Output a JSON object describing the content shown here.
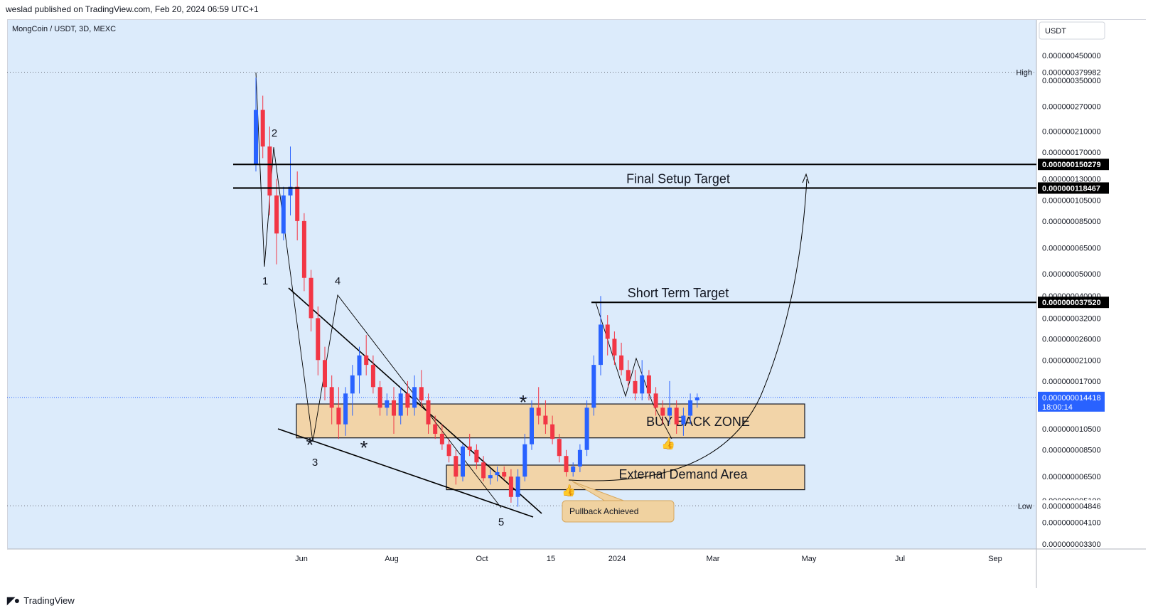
{
  "header": {
    "published": "weslad published on TradingView.com, Feb 20, 2024 06:59 UTC+1"
  },
  "symbol_info": "MongCoin / USDT, 3D, MEXC",
  "currency_button": "USDT",
  "footer": {
    "brand": "TradingView"
  },
  "colors": {
    "background": "#dcebfb",
    "up": "#2962ff",
    "down": "#f23645",
    "zone_fill": "#f2d4a8",
    "zone_stroke": "#131722",
    "callout_fill": "#f0d2a0",
    "callout_stroke": "#d6a75e",
    "last_price_bg": "#2962ff"
  },
  "chart_data": {
    "type": "candlestick",
    "scale": "log",
    "y_ticks": [
      "0.000000450000",
      "0.000000350000",
      "0.000000270000",
      "0.000000210000",
      "0.000000170000",
      "0.000000130000",
      "0.000000105000",
      "0.000000085000",
      "0.000000065000",
      "0.000000050000",
      "0.000000040000",
      "0.000000032000",
      "0.000000026000",
      "0.000000021000",
      "0.000000017000",
      "0.000000010500",
      "0.000000008500",
      "0.000000006500",
      "0.000000005100",
      "0.000000004100",
      "0.000000003300"
    ],
    "x_ticks": [
      "Jun",
      "Aug",
      "Oct",
      "15",
      "2024",
      "Mar",
      "May",
      "Jul",
      "Sep"
    ],
    "high": {
      "label": "High",
      "value": "0.000000379982"
    },
    "low": {
      "label": "Low",
      "value": "0.000000004846"
    },
    "levels": [
      {
        "value": "0.000000150279",
        "text": ""
      },
      {
        "value": "0.000000118467",
        "text": "Final Setup Target"
      },
      {
        "value": "0.000000037520",
        "text": "Short Term Target"
      }
    ],
    "last_price": {
      "value": "0.000000014418",
      "countdown": "18:00:14"
    },
    "zones": [
      {
        "name": "BUY BACK ZONE"
      },
      {
        "name": "External Demand Area"
      }
    ],
    "wave_labels": [
      "1",
      "2",
      "3",
      "4",
      "5"
    ],
    "markers": [
      "*",
      "*",
      "*"
    ],
    "callout": "Pullback Achieved",
    "candles": [
      [
        1.5e-07,
        3.6e-07,
        1.4e-07,
        2.6e-07
      ],
      [
        2.6e-07,
        3e-07,
        1.6e-07,
        1.8e-07
      ],
      [
        1.8e-07,
        2.2e-07,
        9e-08,
        1.1e-07
      ],
      [
        1.1e-07,
        1.3e-07,
        5.5e-08,
        7.5e-08
      ],
      [
        7.5e-08,
        1.2e-07,
        7e-08,
        1.1e-07
      ],
      [
        1.1e-07,
        1.8e-07,
        9e-08,
        1.2e-07
      ],
      [
        1.2e-07,
        1.4e-07,
        7e-08,
        8.5e-08
      ],
      [
        8.5e-08,
        9.2e-08,
        4.2e-08,
        4.8e-08
      ],
      [
        4.8e-08,
        5.2e-08,
        2.8e-08,
        3.2e-08
      ],
      [
        3.2e-08,
        3.6e-08,
        1.8e-08,
        2.1e-08
      ],
      [
        2.1e-08,
        2.4e-08,
        1.4e-08,
        1.6e-08
      ],
      [
        1.6e-08,
        1.8e-08,
        1.1e-08,
        1.3e-08
      ],
      [
        1.3e-08,
        1.6e-08,
        9.5e-09,
        1.1e-08
      ],
      [
        1.1e-08,
        1.6e-08,
        9.8e-09,
        1.5e-08
      ],
      [
        1.5e-08,
        2e-08,
        1.2e-08,
        1.8e-08
      ],
      [
        1.8e-08,
        2.4e-08,
        1.5e-08,
        2.2e-08
      ],
      [
        2.2e-08,
        2.7e-08,
        1.8e-08,
        2e-08
      ],
      [
        2e-08,
        2.2e-08,
        1.5e-08,
        1.6e-08
      ],
      [
        1.6e-08,
        1.7e-08,
        1.2e-08,
        1.3e-08
      ],
      [
        1.3e-08,
        1.5e-08,
        1.2e-08,
        1.4e-08
      ],
      [
        1.4e-08,
        1.6e-08,
        1e-08,
        1.2e-08
      ],
      [
        1.2e-08,
        1.6e-08,
        1.1e-08,
        1.5e-08
      ],
      [
        1.5e-08,
        1.7e-08,
        1.2e-08,
        1.3e-08
      ],
      [
        1.3e-08,
        1.8e-08,
        1.2e-08,
        1.6e-08
      ],
      [
        1.6e-08,
        1.9e-08,
        1.3e-08,
        1.4e-08
      ],
      [
        1.4e-08,
        1.5e-08,
        1e-08,
        1.1e-08
      ],
      [
        1.1e-08,
        1.2e-08,
        9.5e-09,
        1e-08
      ],
      [
        1e-08,
        1.1e-08,
        8.5e-09,
        9e-09
      ],
      [
        9e-09,
        9.5e-09,
        7.5e-09,
        8e-09
      ],
      [
        8e-09,
        8.5e-09,
        6e-09,
        6.5e-09
      ],
      [
        6.5e-09,
        9e-09,
        6.2e-09,
        8.8e-09
      ],
      [
        8.8e-09,
        1e-08,
        8e-09,
        8.5e-09
      ],
      [
        8.5e-09,
        9e-09,
        7e-09,
        7.5e-09
      ],
      [
        7.5e-09,
        8e-09,
        6.2e-09,
        6.4e-09
      ],
      [
        6.4e-09,
        7e-09,
        6e-09,
        6.6e-09
      ],
      [
        6.6e-09,
        7.2e-09,
        6.2e-09,
        6.8e-09
      ],
      [
        6.8e-09,
        7.2e-09,
        6.3e-09,
        6.5e-09
      ],
      [
        6.5e-09,
        7e-09,
        5e-09,
        5.3e-09
      ],
      [
        5.3e-09,
        7e-09,
        4.8e-09,
        6.5e-09
      ],
      [
        6.5e-09,
        1e-08,
        6.2e-09,
        9e-09
      ],
      [
        9e-09,
        1.4e-08,
        8.5e-09,
        1.3e-08
      ],
      [
        1.3e-08,
        1.6e-08,
        1.1e-08,
        1.2e-08
      ],
      [
        1.2e-08,
        1.4e-08,
        1e-08,
        1.1e-08
      ],
      [
        1.1e-08,
        1.2e-08,
        9e-09,
        9.5e-09
      ],
      [
        9.5e-09,
        1e-08,
        7.5e-09,
        8e-09
      ],
      [
        8e-09,
        8.5e-09,
        6.5e-09,
        6.8e-09
      ],
      [
        6.8e-09,
        7.5e-09,
        6.5e-09,
        7.2e-09
      ],
      [
        7.2e-09,
        9e-09,
        6.8e-09,
        8.5e-09
      ],
      [
        8.5e-09,
        1.4e-08,
        8e-09,
        1.3e-08
      ],
      [
        1.3e-08,
        2.2e-08,
        1.2e-08,
        2e-08
      ],
      [
        2e-08,
        4e-08,
        1.8e-08,
        3e-08
      ],
      [
        3e-08,
        3.3e-08,
        2.2e-08,
        2.6e-08
      ],
      [
        2.6e-08,
        2.8e-08,
        2e-08,
        2.2e-08
      ],
      [
        2.2e-08,
        2.5e-08,
        1.8e-08,
        1.9e-08
      ],
      [
        1.9e-08,
        2.1e-08,
        1.6e-08,
        1.7e-08
      ],
      [
        1.7e-08,
        1.9e-08,
        1.4e-08,
        1.5e-08
      ],
      [
        1.5e-08,
        2.1e-08,
        1.4e-08,
        1.8e-08
      ],
      [
        1.8e-08,
        1.9e-08,
        1.4e-08,
        1.5e-08
      ],
      [
        1.5e-08,
        1.6e-08,
        1.2e-08,
        1.3e-08
      ],
      [
        1.3e-08,
        1.4e-08,
        1.1e-08,
        1.2e-08
      ],
      [
        1.2e-08,
        1.7e-08,
        1.1e-08,
        1.3e-08
      ],
      [
        1.3e-08,
        1.4e-08,
        1e-08,
        1.1e-08
      ],
      [
        1.1e-08,
        1.3e-08,
        9.8e-09,
        1.2e-08
      ],
      [
        1.2e-08,
        1.5e-08,
        1.1e-08,
        1.4e-08
      ],
      [
        1.4e-08,
        1.5e-08,
        1.3e-08,
        1.4418e-08
      ]
    ]
  }
}
